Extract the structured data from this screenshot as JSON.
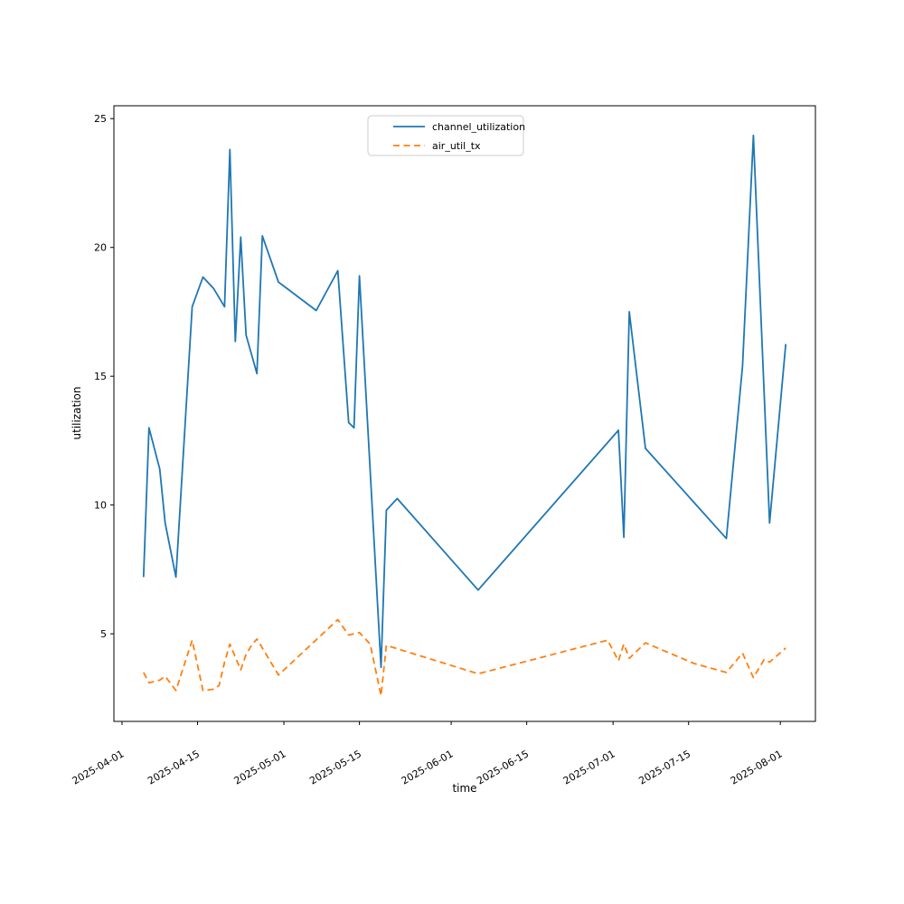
{
  "chart_data": {
    "type": "line",
    "title": "",
    "xlabel": "time",
    "ylabel": "utilization",
    "grid": false,
    "legend": {
      "position": "upper center inside plot",
      "entries": [
        "channel_utilization",
        "air_util_tx"
      ]
    },
    "x_ticks": [
      "2025-04-01",
      "2025-04-15",
      "2025-05-01",
      "2025-05-15",
      "2025-06-01",
      "2025-06-15",
      "2025-07-01",
      "2025-07-15",
      "2025-08-01"
    ],
    "x_tick_rotation_deg": 30,
    "y_ticks": [
      5,
      10,
      15,
      20,
      25
    ],
    "xlim": [
      "2025-03-30T12:00:00",
      "2025-08-07T12:00:00"
    ],
    "ylim": [
      1.6,
      25.5
    ],
    "series": [
      {
        "name": "channel_utilization",
        "color": "#1f77b4",
        "style": "solid",
        "points": [
          [
            "2025-04-05",
            7.2
          ],
          [
            "2025-04-06",
            13.0
          ],
          [
            "2025-04-08",
            11.4
          ],
          [
            "2025-04-09",
            9.3
          ],
          [
            "2025-04-11",
            7.2
          ],
          [
            "2025-04-14",
            17.7
          ],
          [
            "2025-04-16",
            18.85
          ],
          [
            "2025-04-18",
            18.4
          ],
          [
            "2025-04-20",
            17.7
          ],
          [
            "2025-04-21",
            23.8
          ],
          [
            "2025-04-22",
            16.35
          ],
          [
            "2025-04-23",
            20.4
          ],
          [
            "2025-04-24",
            16.6
          ],
          [
            "2025-04-26",
            15.1
          ],
          [
            "2025-04-27",
            20.45
          ],
          [
            "2025-04-30",
            18.65
          ],
          [
            "2025-05-01",
            18.5
          ],
          [
            "2025-05-07",
            17.55
          ],
          [
            "2025-05-11",
            19.1
          ],
          [
            "2025-05-13",
            13.2
          ],
          [
            "2025-05-14",
            13.0
          ],
          [
            "2025-05-15",
            18.9
          ],
          [
            "2025-05-19",
            3.7
          ],
          [
            "2025-05-20",
            9.8
          ],
          [
            "2025-05-22",
            10.25
          ],
          [
            "2025-06-06",
            6.7
          ],
          [
            "2025-07-02",
            12.9
          ],
          [
            "2025-07-03",
            8.75
          ],
          [
            "2025-07-04",
            17.5
          ],
          [
            "2025-07-07",
            12.2
          ],
          [
            "2025-07-22",
            8.7
          ],
          [
            "2025-07-25",
            15.4
          ],
          [
            "2025-07-27",
            24.35
          ],
          [
            "2025-07-30",
            9.3
          ],
          [
            "2025-08-02",
            16.25
          ]
        ]
      },
      {
        "name": "air_util_tx",
        "color": "#ff7f0e",
        "style": "dashed",
        "points": [
          [
            "2025-04-05",
            3.5
          ],
          [
            "2025-04-06",
            3.1
          ],
          [
            "2025-04-08",
            3.2
          ],
          [
            "2025-04-09",
            3.35
          ],
          [
            "2025-04-11",
            2.8
          ],
          [
            "2025-04-14",
            4.75
          ],
          [
            "2025-04-16",
            2.8
          ],
          [
            "2025-04-18",
            2.85
          ],
          [
            "2025-04-19",
            3.0
          ],
          [
            "2025-04-20",
            3.9
          ],
          [
            "2025-04-21",
            4.6
          ],
          [
            "2025-04-22",
            4.1
          ],
          [
            "2025-04-23",
            3.6
          ],
          [
            "2025-04-24",
            4.2
          ],
          [
            "2025-04-25",
            4.55
          ],
          [
            "2025-04-26",
            4.8
          ],
          [
            "2025-04-30",
            3.4
          ],
          [
            "2025-05-11",
            5.55
          ],
          [
            "2025-05-13",
            4.95
          ],
          [
            "2025-05-15",
            5.05
          ],
          [
            "2025-05-17",
            4.6
          ],
          [
            "2025-05-19",
            2.6
          ],
          [
            "2025-05-20",
            4.55
          ],
          [
            "2025-06-06",
            3.45
          ],
          [
            "2025-06-30",
            4.75
          ],
          [
            "2025-07-02",
            3.95
          ],
          [
            "2025-07-03",
            4.6
          ],
          [
            "2025-07-04",
            4.05
          ],
          [
            "2025-07-07",
            4.65
          ],
          [
            "2025-07-16",
            3.85
          ],
          [
            "2025-07-22",
            3.5
          ],
          [
            "2025-07-25",
            4.25
          ],
          [
            "2025-07-27",
            3.3
          ],
          [
            "2025-07-29",
            4.0
          ],
          [
            "2025-07-30",
            3.9
          ],
          [
            "2025-08-02",
            4.45
          ]
        ]
      }
    ]
  }
}
